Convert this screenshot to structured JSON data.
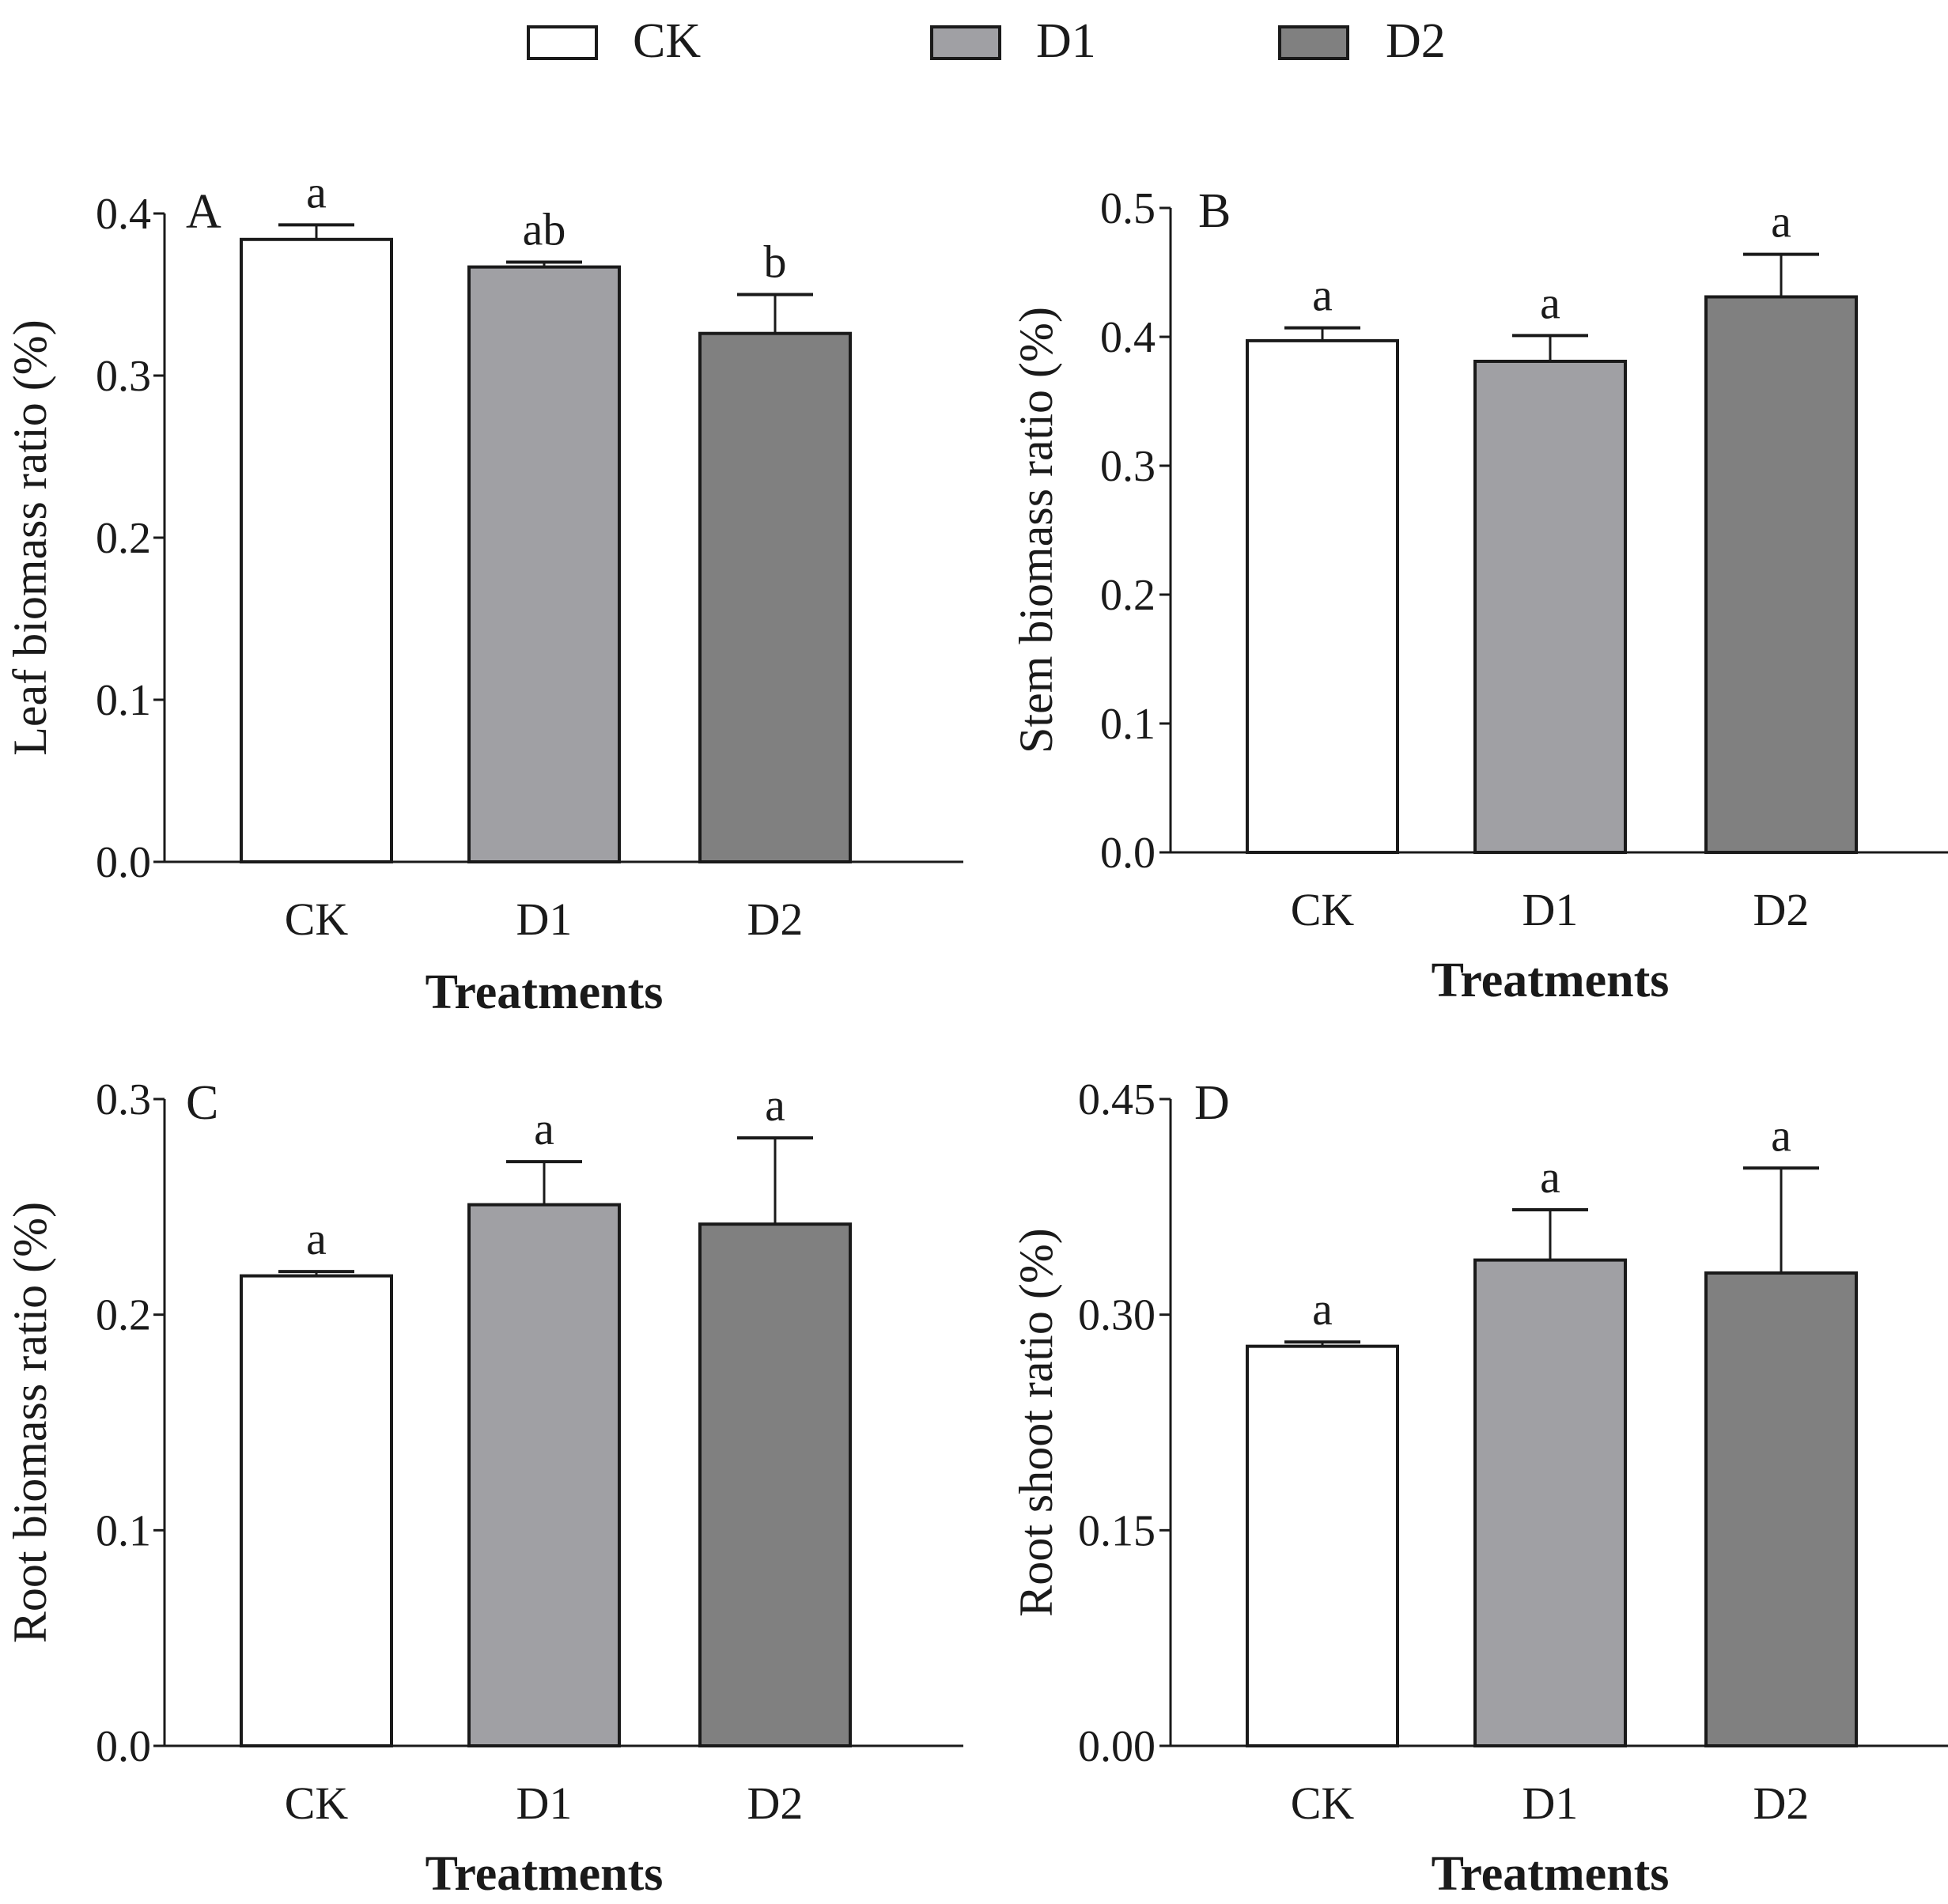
{
  "legend": {
    "items": [
      {
        "label": "CK",
        "color": "#ffffff"
      },
      {
        "label": "D1",
        "color": "#a0a0a4"
      },
      {
        "label": "D2",
        "color": "#808080"
      }
    ]
  },
  "chart_data": [
    {
      "type": "bar",
      "panel": "A",
      "categories": [
        "CK",
        "D1",
        "D2"
      ],
      "values": [
        0.384,
        0.367,
        0.326
      ],
      "errors": [
        0.009,
        0.003,
        0.024
      ],
      "significance": [
        "a",
        "ab",
        "b"
      ],
      "colors": [
        "#ffffff",
        "#a0a0a4",
        "#808080"
      ],
      "xlabel": "Treatments",
      "ylabel": "Leaf biomass ratio (%)",
      "ylim": [
        0,
        0.4
      ],
      "yticks": [
        "0.0",
        "0.1",
        "0.2",
        "0.3",
        "0.4"
      ]
    },
    {
      "type": "bar",
      "panel": "B",
      "categories": [
        "CK",
        "D1",
        "D2"
      ],
      "values": [
        0.397,
        0.381,
        0.431
      ],
      "errors": [
        0.01,
        0.02,
        0.033
      ],
      "significance": [
        "a",
        "a",
        "a"
      ],
      "colors": [
        "#ffffff",
        "#a0a0a4",
        "#808080"
      ],
      "xlabel": "Treatments",
      "ylabel": "Stem biomass ratio (%)",
      "ylim": [
        0,
        0.5
      ],
      "yticks": [
        "0.0",
        "0.1",
        "0.2",
        "0.3",
        "0.4",
        "0.5"
      ]
    },
    {
      "type": "bar",
      "panel": "C",
      "categories": [
        "CK",
        "D1",
        "D2"
      ],
      "values": [
        0.218,
        0.251,
        0.242
      ],
      "errors": [
        0.002,
        0.02,
        0.04
      ],
      "significance": [
        "a",
        "a",
        "a"
      ],
      "colors": [
        "#ffffff",
        "#a0a0a4",
        "#808080"
      ],
      "xlabel": "Treatments",
      "ylabel": "Root biomass ratio (%)",
      "ylim": [
        0,
        0.3
      ],
      "yticks": [
        "0.0",
        "0.1",
        "0.2",
        "0.3"
      ]
    },
    {
      "type": "bar",
      "panel": "D",
      "categories": [
        "CK",
        "D1",
        "D2"
      ],
      "values": [
        0.278,
        0.338,
        0.329
      ],
      "errors": [
        0.003,
        0.035,
        0.073
      ],
      "significance": [
        "a",
        "a",
        "a"
      ],
      "colors": [
        "#ffffff",
        "#a0a0a4",
        "#808080"
      ],
      "xlabel": "Treatments",
      "ylabel": "Root shoot ratio (%)",
      "ylim": [
        0,
        0.45
      ],
      "yticks": [
        "0.00",
        "0.15",
        "0.30",
        "0.45"
      ]
    }
  ]
}
